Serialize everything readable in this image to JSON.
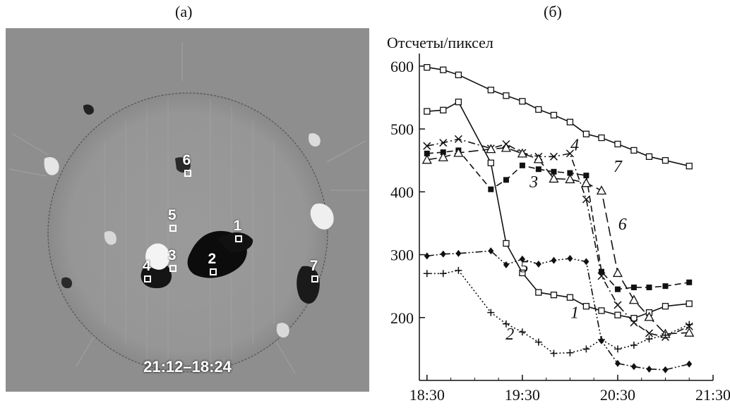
{
  "panel_a_label": "(а)",
  "panel_b_label": "(б)",
  "sun_image": {
    "time_difference": "21:12–18:24",
    "markers": [
      {
        "id": "1",
        "x": 0.64,
        "y": 0.58
      },
      {
        "id": "2",
        "x": 0.57,
        "y": 0.67
      },
      {
        "id": "3",
        "x": 0.46,
        "y": 0.66
      },
      {
        "id": "4",
        "x": 0.39,
        "y": 0.69
      },
      {
        "id": "5",
        "x": 0.46,
        "y": 0.55
      },
      {
        "id": "6",
        "x": 0.5,
        "y": 0.4
      },
      {
        "id": "7",
        "x": 0.85,
        "y": 0.69
      }
    ]
  },
  "chart_data": {
    "type": "line",
    "ylabel": "Отсчеты/пиксел",
    "xlabel": "",
    "x_ticks": [
      "18:30",
      "19:30",
      "20:30",
      "21:30"
    ],
    "y_ticks": [
      200,
      300,
      400,
      500,
      600
    ],
    "xlim": [
      18.42,
      21.5
    ],
    "ylim": [
      100,
      620
    ],
    "grid": false,
    "series": [
      {
        "name": "7",
        "marker": "open-square",
        "dash": "solid",
        "x": [
          18.5,
          18.67,
          18.83,
          19.17,
          19.33,
          19.5,
          19.67,
          19.83,
          20.0,
          20.17,
          20.33,
          20.5,
          20.67,
          20.83,
          21.0,
          21.25
        ],
        "y": [
          598,
          594,
          586,
          562,
          553,
          544,
          531,
          522,
          511,
          492,
          486,
          476,
          466,
          456,
          450,
          441
        ]
      },
      {
        "name": "1",
        "marker": "open-square",
        "dash": "solid",
        "x": [
          18.5,
          18.67,
          18.83,
          19.17,
          19.33,
          19.5,
          19.67,
          19.83,
          20.0,
          20.17,
          20.33,
          20.5,
          20.67,
          20.83,
          21.0,
          21.25
        ],
        "y": [
          528,
          530,
          543,
          446,
          318,
          271,
          240,
          236,
          232,
          218,
          211,
          204,
          199,
          208,
          218,
          222
        ]
      },
      {
        "name": "4",
        "marker": "x",
        "dash": "dashdot",
        "x": [
          18.5,
          18.67,
          18.83,
          19.17,
          19.33,
          19.5,
          19.67,
          19.83,
          20.0,
          20.17,
          20.33,
          20.5,
          20.67,
          20.83,
          21.0,
          21.25
        ],
        "y": [
          473,
          478,
          484,
          469,
          476,
          462,
          456,
          456,
          461,
          388,
          266,
          220,
          192,
          175,
          169,
          186
        ]
      },
      {
        "name": "3",
        "marker": "filled-square",
        "dash": "dashed",
        "x": [
          18.5,
          18.67,
          18.83,
          19.17,
          19.33,
          19.5,
          19.67,
          19.83,
          20.0,
          20.17,
          20.33,
          20.5,
          20.67,
          20.83,
          21.0,
          21.25
        ],
        "y": [
          461,
          463,
          466,
          404,
          419,
          442,
          436,
          432,
          430,
          426,
          273,
          245,
          248,
          248,
          250,
          256
        ]
      },
      {
        "name": "6",
        "marker": "open-triangle",
        "dash": "longdash",
        "x": [
          18.5,
          18.67,
          18.83,
          19.17,
          19.33,
          19.5,
          19.67,
          19.83,
          20.0,
          20.17,
          20.33,
          20.5,
          20.67,
          20.83,
          21.0,
          21.25
        ],
        "y": [
          451,
          455,
          462,
          468,
          470,
          461,
          452,
          421,
          420,
          414,
          402,
          271,
          228,
          201,
          174,
          176
        ]
      },
      {
        "name": "5",
        "marker": "filled-diamond",
        "dash": "dashdotdot",
        "x": [
          18.5,
          18.67,
          18.83,
          19.17,
          19.33,
          19.5,
          19.67,
          19.83,
          20.0,
          20.17,
          20.33,
          20.5,
          20.67,
          20.83,
          21.0,
          21.25
        ],
        "y": [
          298,
          301,
          302,
          306,
          284,
          293,
          285,
          291,
          294,
          289,
          163,
          127,
          122,
          118,
          117,
          126
        ]
      },
      {
        "name": "2",
        "marker": "plus",
        "dash": "dotted",
        "x": [
          18.5,
          18.67,
          18.83,
          19.17,
          19.33,
          19.5,
          19.67,
          19.83,
          20.0,
          20.17,
          20.33,
          20.5,
          20.67,
          20.83,
          21.0,
          21.25
        ],
        "y": [
          270,
          270,
          275,
          208,
          190,
          177,
          161,
          143,
          144,
          150,
          165,
          150,
          156,
          166,
          172,
          189
        ]
      }
    ],
    "curve_labels": [
      {
        "text": "7",
        "x": 20.5,
        "y": 432
      },
      {
        "text": "4",
        "x": 20.05,
        "y": 466
      },
      {
        "text": "3",
        "x": 19.62,
        "y": 407
      },
      {
        "text": "6",
        "x": 20.55,
        "y": 340
      },
      {
        "text": "5",
        "x": 19.52,
        "y": 272
      },
      {
        "text": "1",
        "x": 20.05,
        "y": 199
      },
      {
        "text": "2",
        "x": 19.37,
        "y": 165
      }
    ]
  }
}
